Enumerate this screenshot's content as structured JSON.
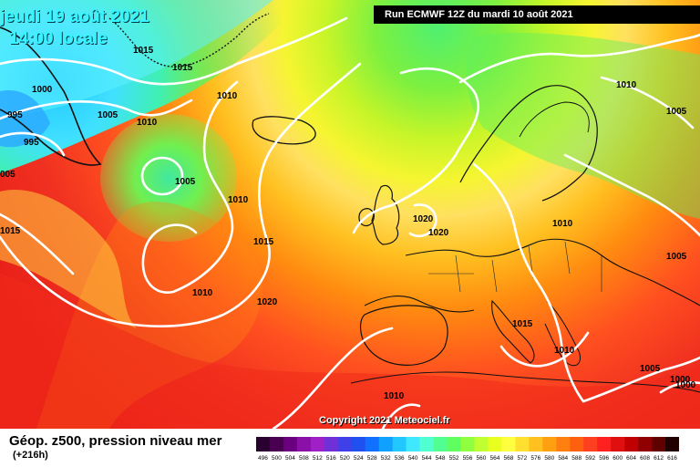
{
  "title": {
    "date": "jeudi 19 août 2021",
    "time": "14:00 locale"
  },
  "run_label": "Run ECMWF 12Z du mardi 10 août 2021",
  "copyright": "Copyright 2021 Meteociel.fr",
  "footer": {
    "title": "Géop. z500, pression niveau mer",
    "subtitle": "(+216h)"
  },
  "legend": {
    "values": [
      "496",
      "500",
      "504",
      "508",
      "512",
      "516",
      "520",
      "524",
      "528",
      "532",
      "536",
      "540",
      "544",
      "548",
      "552",
      "556",
      "560",
      "564",
      "568",
      "572",
      "576",
      "580",
      "584",
      "588",
      "592",
      "596",
      "600",
      "604",
      "608",
      "612",
      "616"
    ],
    "colors": [
      "#2a0030",
      "#4a0050",
      "#6a0080",
      "#8a10a8",
      "#a020c8",
      "#7030d8",
      "#4040e8",
      "#2050f0",
      "#1070ff",
      "#10a0ff",
      "#20c8ff",
      "#40e8ff",
      "#50ffd0",
      "#50ff90",
      "#60ff60",
      "#90ff40",
      "#c0ff30",
      "#e8ff20",
      "#ffff40",
      "#ffe030",
      "#ffc020",
      "#ffa010",
      "#ff8010",
      "#ff6010",
      "#ff4020",
      "#ff2020",
      "#e01010",
      "#c00000",
      "#900000",
      "#600000",
      "#200000"
    ]
  },
  "isobar_labels": [
    {
      "text": "1015"
    },
    {
      "text": "1015"
    },
    {
      "text": "1010"
    },
    {
      "text": "1000"
    },
    {
      "text": "1005"
    },
    {
      "text": "1010"
    },
    {
      "text": "995"
    },
    {
      "text": "995"
    },
    {
      "text": "005"
    },
    {
      "text": "1005"
    },
    {
      "text": "1010"
    },
    {
      "text": "1015"
    },
    {
      "text": "1015"
    },
    {
      "text": "1010"
    },
    {
      "text": "1020"
    },
    {
      "text": "1020"
    },
    {
      "text": "1020"
    },
    {
      "text": "1010"
    },
    {
      "text": "1010"
    },
    {
      "text": "1005"
    },
    {
      "text": "1005"
    },
    {
      "text": "1015"
    },
    {
      "text": "1010"
    },
    {
      "text": "1005"
    },
    {
      "text": "1000"
    },
    {
      "text": "1000"
    },
    {
      "text": "1010"
    }
  ]
}
